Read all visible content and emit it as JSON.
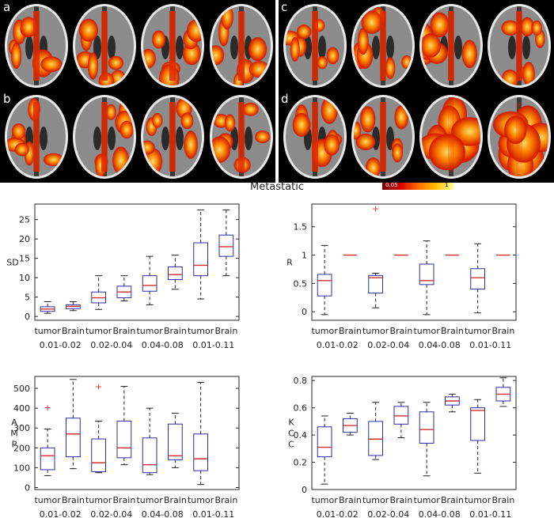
{
  "figure": {
    "title": "Metastatic",
    "panel_labels": [
      "a",
      "b",
      "c",
      "d"
    ],
    "colorbar": {
      "min_label": "0.05",
      "max_label": "1"
    },
    "colors": {
      "box": "#2c2ca8",
      "median": "#d0302a",
      "outlier": "#d0302a",
      "whisker": "#222222"
    }
  },
  "chart_data": [
    {
      "type": "box",
      "ylabel": "SD",
      "ylim": [
        -1,
        29
      ],
      "yticks": [
        0,
        5,
        10,
        15,
        20,
        25
      ],
      "categories": [
        "tumor",
        "Brain",
        "tumor",
        "Brain",
        "tumor",
        "Brain",
        "tumor",
        "Brain"
      ],
      "groups": [
        "0.01-0.02",
        "0.02-0.04",
        "0.04-0.08",
        "0.01-0.11"
      ],
      "boxes": [
        {
          "min": 0.8,
          "q1": 1.3,
          "median": 1.9,
          "q3": 2.5,
          "max": 3.8,
          "outliers": []
        },
        {
          "min": 1.5,
          "q1": 2.0,
          "median": 2.6,
          "q3": 3.0,
          "max": 3.8,
          "outliers": []
        },
        {
          "min": 1.8,
          "q1": 3.5,
          "median": 4.8,
          "q3": 6.3,
          "max": 10.5,
          "outliers": []
        },
        {
          "min": 4.0,
          "q1": 4.8,
          "median": 6.3,
          "q3": 7.8,
          "max": 10.5,
          "outliers": []
        },
        {
          "min": 3.0,
          "q1": 6.5,
          "median": 8.0,
          "q3": 10.5,
          "max": 15.5,
          "outliers": []
        },
        {
          "min": 7.0,
          "q1": 9.5,
          "median": 10.8,
          "q3": 12.8,
          "max": 15.8,
          "outliers": []
        },
        {
          "min": 4.5,
          "q1": 10.5,
          "median": 13.2,
          "q3": 19.0,
          "max": 27.5,
          "outliers": []
        },
        {
          "min": 10.5,
          "q1": 15.5,
          "median": 18.0,
          "q3": 21.0,
          "max": 27.5,
          "outliers": []
        }
      ]
    },
    {
      "type": "box",
      "ylabel": "R",
      "ylim": [
        -0.15,
        1.9
      ],
      "yticks": [
        0,
        0.5,
        1,
        1.5
      ],
      "categories": [
        "tumor",
        "Brain",
        "tumor",
        "Brain",
        "tumor",
        "Brain",
        "tumor",
        "Brain"
      ],
      "groups": [
        "0.01-0.02",
        "0.02-0.04",
        "0.04-0.08",
        "0.01-0.11"
      ],
      "boxes": [
        {
          "min": -0.05,
          "q1": 0.28,
          "median": 0.55,
          "q3": 0.66,
          "max": 1.17,
          "outliers": []
        },
        {
          "min": 1.0,
          "q1": 1.0,
          "median": 1.0,
          "q3": 1.0,
          "max": 1.0,
          "outliers": []
        },
        {
          "min": 0.07,
          "q1": 0.33,
          "median": 0.6,
          "q3": 0.64,
          "max": 0.68,
          "outliers": [
            1.82
          ]
        },
        {
          "min": 1.0,
          "q1": 1.0,
          "median": 1.0,
          "q3": 1.0,
          "max": 1.0,
          "outliers": []
        },
        {
          "min": -0.05,
          "q1": 0.48,
          "median": 0.55,
          "q3": 0.84,
          "max": 1.25,
          "outliers": []
        },
        {
          "min": 1.0,
          "q1": 1.0,
          "median": 1.0,
          "q3": 1.0,
          "max": 1.0,
          "outliers": []
        },
        {
          "min": -0.02,
          "q1": 0.4,
          "median": 0.6,
          "q3": 0.76,
          "max": 1.2,
          "outliers": []
        },
        {
          "min": 1.0,
          "q1": 1.0,
          "median": 1.0,
          "q3": 1.0,
          "max": 1.0,
          "outliers": []
        }
      ]
    },
    {
      "type": "box",
      "ylabel": "AMP",
      "ylim": [
        -10,
        560
      ],
      "yticks": [
        0,
        100,
        200,
        300,
        400,
        500
      ],
      "categories": [
        "tumor",
        "Brain",
        "tumor",
        "Brain",
        "tumor",
        "Brain",
        "tumor",
        "Brain"
      ],
      "groups": [
        "0.01-0.02",
        "0.02-0.04",
        "0.04-0.08",
        "0.01-0.11"
      ],
      "boxes": [
        {
          "min": 60,
          "q1": 90,
          "median": 160,
          "q3": 200,
          "max": 295,
          "outliers": [
            405
          ]
        },
        {
          "min": 95,
          "q1": 155,
          "median": 270,
          "q3": 350,
          "max": 545,
          "outliers": []
        },
        {
          "min": 75,
          "q1": 80,
          "median": 125,
          "q3": 245,
          "max": 335,
          "outliers": [
            510
          ]
        },
        {
          "min": 115,
          "q1": 150,
          "median": 200,
          "q3": 335,
          "max": 510,
          "outliers": []
        },
        {
          "min": 65,
          "q1": 75,
          "median": 115,
          "q3": 250,
          "max": 400,
          "outliers": []
        },
        {
          "min": 100,
          "q1": 140,
          "median": 160,
          "q3": 320,
          "max": 375,
          "outliers": []
        },
        {
          "min": 15,
          "q1": 85,
          "median": 145,
          "q3": 270,
          "max": 530,
          "outliers": []
        },
        {
          "min": 0,
          "q1": 0,
          "median": 0,
          "q3": 0,
          "max": 0,
          "outliers": [],
          "empty": true
        }
      ]
    },
    {
      "type": "box",
      "ylabel": "KCC",
      "ylim": [
        0,
        0.83
      ],
      "yticks": [
        0,
        0.2,
        0.4,
        0.6,
        0.8
      ],
      "categories": [
        "tumor",
        "Brain",
        "tumor",
        "Brain",
        "tumor",
        "Brain",
        "tumor",
        "Brain"
      ],
      "groups": [
        "0.01-0.02",
        "0.02-0.04",
        "0.04-0.08",
        "0.01-0.11"
      ],
      "boxes": [
        {
          "min": 0.04,
          "q1": 0.24,
          "median": 0.31,
          "q3": 0.46,
          "max": 0.54,
          "outliers": []
        },
        {
          "min": 0.4,
          "q1": 0.42,
          "median": 0.47,
          "q3": 0.52,
          "max": 0.56,
          "outliers": []
        },
        {
          "min": 0.22,
          "q1": 0.25,
          "median": 0.37,
          "q3": 0.5,
          "max": 0.64,
          "outliers": []
        },
        {
          "min": 0.38,
          "q1": 0.48,
          "median": 0.54,
          "q3": 0.61,
          "max": 0.64,
          "outliers": []
        },
        {
          "min": 0.1,
          "q1": 0.34,
          "median": 0.44,
          "q3": 0.57,
          "max": 0.64,
          "outliers": []
        },
        {
          "min": 0.57,
          "q1": 0.62,
          "median": 0.65,
          "q3": 0.68,
          "max": 0.7,
          "outliers": []
        },
        {
          "min": 0.12,
          "q1": 0.36,
          "median": 0.58,
          "q3": 0.6,
          "max": 0.66,
          "outliers": []
        },
        {
          "min": 0.61,
          "q1": 0.65,
          "median": 0.7,
          "q3": 0.75,
          "max": 0.82,
          "outliers": []
        }
      ]
    }
  ]
}
